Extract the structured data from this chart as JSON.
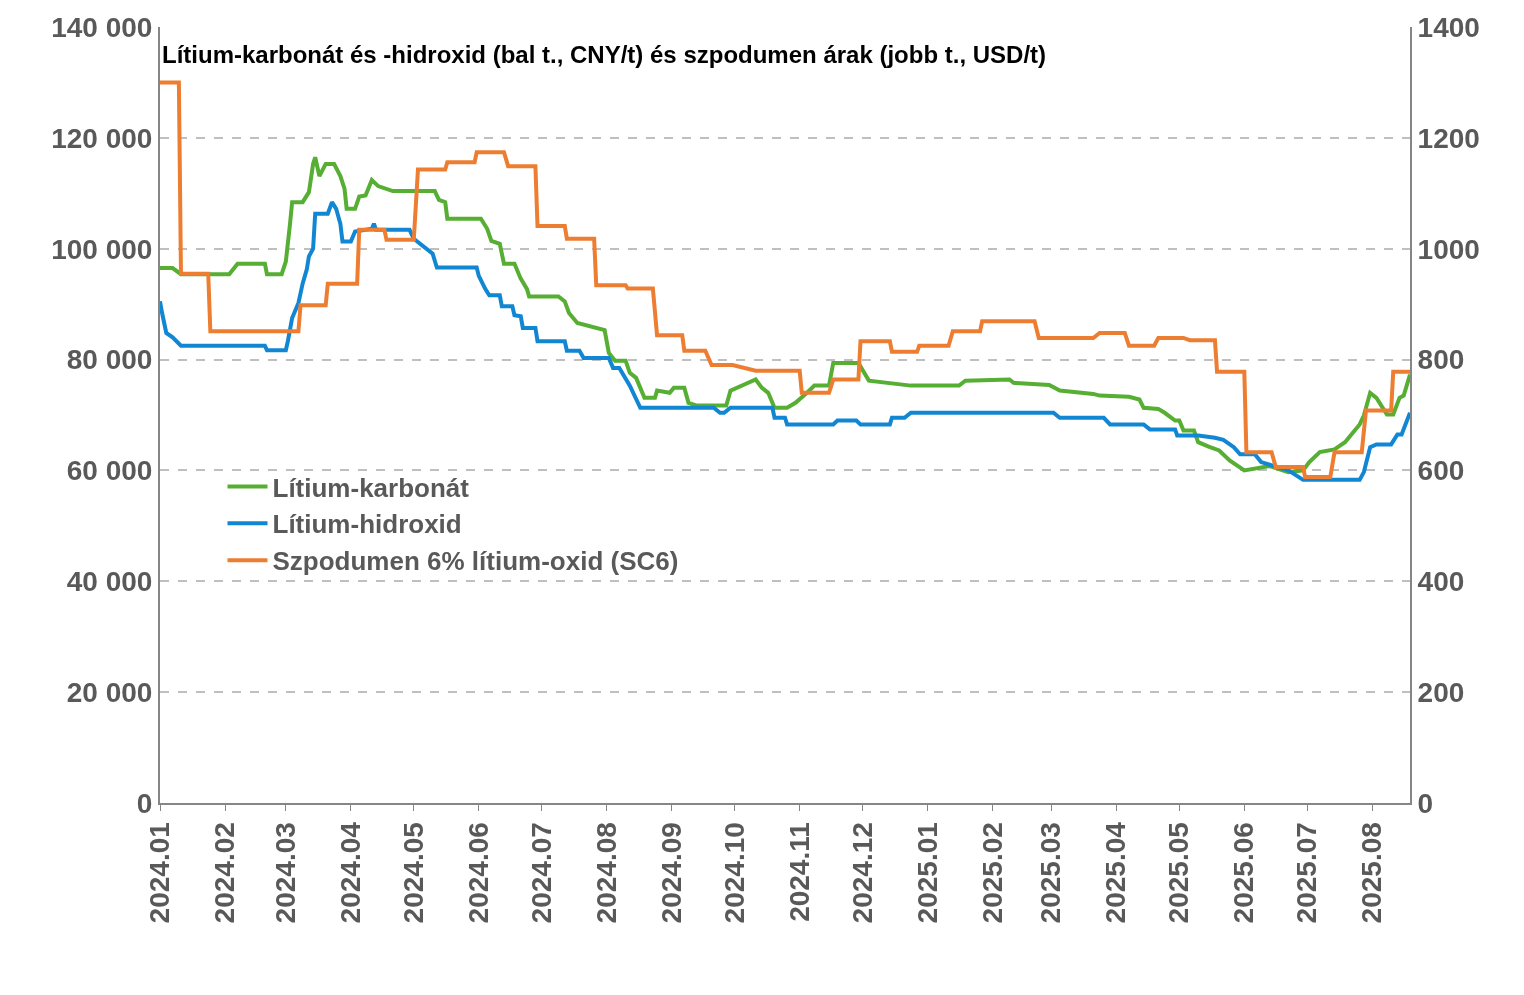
{
  "chart_data": {
    "type": "line",
    "title": "Lítium-karbonát és -hidroxid (bal t., CNY/t) és szpodumen árak (jobb t., USD/t)",
    "xlim": [
      "2024-01-01",
      "2025-08-19"
    ],
    "xticks": [
      {
        "value": "2024-01-01",
        "label": "2024.01"
      },
      {
        "value": "2024-02-01",
        "label": "2024.02"
      },
      {
        "value": "2024-03-01",
        "label": "2024.03"
      },
      {
        "value": "2024-04-01",
        "label": "2024.04"
      },
      {
        "value": "2024-05-01",
        "label": "2024.05"
      },
      {
        "value": "2024-06-01",
        "label": "2024.06"
      },
      {
        "value": "2024-07-01",
        "label": "2024.07"
      },
      {
        "value": "2024-08-01",
        "label": "2024.08"
      },
      {
        "value": "2024-09-01",
        "label": "2024.09"
      },
      {
        "value": "2024-10-01",
        "label": "2024.10"
      },
      {
        "value": "2024-11-01",
        "label": "2024.11"
      },
      {
        "value": "2024-12-01",
        "label": "2024.12"
      },
      {
        "value": "2025-01-01",
        "label": "2025.01"
      },
      {
        "value": "2025-02-01",
        "label": "2025.02"
      },
      {
        "value": "2025-03-01",
        "label": "2025.03"
      },
      {
        "value": "2025-04-01",
        "label": "2025.04"
      },
      {
        "value": "2025-05-01",
        "label": "2025.05"
      },
      {
        "value": "2025-06-01",
        "label": "2025.06"
      },
      {
        "value": "2025-07-01",
        "label": "2025.07"
      },
      {
        "value": "2025-08-01",
        "label": "2025.08"
      }
    ],
    "ylim": [
      0,
      140000
    ],
    "yticks": [
      0,
      {
        "value": 20000,
        "label": "20 000"
      },
      {
        "value": 40000,
        "label": "40 000"
      },
      {
        "value": 60000,
        "label": "60 000"
      },
      {
        "value": 80000,
        "label": "80 000"
      },
      {
        "value": 100000,
        "label": "100 000"
      },
      {
        "value": 120000,
        "label": "120 000"
      },
      {
        "value": 140000,
        "label": "140 000"
      }
    ],
    "y2lim": [
      0,
      1400
    ],
    "y2ticks": [
      0,
      200,
      400,
      600,
      800,
      1000,
      1200,
      1400
    ],
    "grid": "y",
    "legend": "left",
    "marker": "none",
    "line_style": "solid",
    "series": [
      {
        "name": "Lítium-karbonát",
        "color": "#56ae33",
        "x": [
          "2024-01-01",
          "2024-01-07",
          "2024-01-11",
          "2024-02-03",
          "2024-02-07",
          "2024-02-20",
          "2024-02-21",
          "2024-02-28",
          "2024-03-01",
          "2024-03-03",
          "2024-03-04",
          "2024-03-09",
          "2024-03-12",
          "2024-03-14",
          "2024-03-15",
          "2024-03-17",
          "2024-03-20",
          "2024-03-24",
          "2024-03-27",
          "2024-03-29",
          "2024-03-30",
          "2024-04-03",
          "2024-04-05",
          "2024-04-08",
          "2024-04-11",
          "2024-04-14",
          "2024-04-21",
          "2024-05-11",
          "2024-05-13",
          "2024-05-16",
          "2024-05-17",
          "2024-06-02",
          "2024-06-05",
          "2024-06-07",
          "2024-06-11",
          "2024-06-13",
          "2024-06-18",
          "2024-06-21",
          "2024-06-24",
          "2024-06-25",
          "2024-07-09",
          "2024-07-12",
          "2024-07-14",
          "2024-07-18",
          "2024-07-31",
          "2024-08-02",
          "2024-08-05",
          "2024-08-10",
          "2024-08-12",
          "2024-08-15",
          "2024-08-19",
          "2024-08-24",
          "2024-08-25",
          "2024-08-31",
          "2024-09-02",
          "2024-09-07",
          "2024-09-09",
          "2024-09-13",
          "2024-09-27",
          "2024-09-29",
          "2024-10-11",
          "2024-10-14",
          "2024-10-17",
          "2024-10-20",
          "2024-10-26",
          "2024-10-30",
          "2024-11-05",
          "2024-11-08",
          "2024-11-15",
          "2024-11-17",
          "2024-11-29",
          "2024-12-04",
          "2024-12-24",
          "2025-01-16",
          "2025-01-19",
          "2025-02-09",
          "2025-02-11",
          "2025-02-28",
          "2025-03-05",
          "2025-03-21",
          "2025-03-24",
          "2025-04-07",
          "2025-04-12",
          "2025-04-14",
          "2025-04-21",
          "2025-04-24",
          "2025-04-29",
          "2025-05-01",
          "2025-05-03",
          "2025-05-08",
          "2025-05-10",
          "2025-05-15",
          "2025-05-20",
          "2025-05-25",
          "2025-06-01",
          "2025-06-13",
          "2025-06-22",
          "2025-06-29",
          "2025-07-02",
          "2025-07-07",
          "2025-07-14",
          "2025-07-19",
          "2025-07-26",
          "2025-07-28",
          "2025-07-31",
          "2025-08-03",
          "2025-08-08",
          "2025-08-11",
          "2025-08-14",
          "2025-08-16",
          "2025-08-19"
        ],
        "values": [
          96500,
          96500,
          95400,
          95400,
          97300,
          97300,
          95400,
          95400,
          97700,
          104500,
          108400,
          108400,
          110200,
          115300,
          116500,
          113100,
          115300,
          115300,
          113100,
          110800,
          107200,
          107200,
          109400,
          109600,
          112400,
          111300,
          110400,
          110400,
          108800,
          108400,
          105400,
          105400,
          103600,
          101400,
          100900,
          97300,
          97300,
          94600,
          92700,
          91400,
          91400,
          90500,
          88400,
          86600,
          85300,
          81200,
          79800,
          79800,
          77600,
          76700,
          73100,
          73100,
          74400,
          74000,
          74900,
          74900,
          72200,
          71700,
          71700,
          74400,
          76400,
          74900,
          74000,
          71300,
          71300,
          72200,
          74200,
          75300,
          75300,
          79400,
          79400,
          76200,
          75300,
          75300,
          76200,
          76400,
          75800,
          75400,
          74400,
          73800,
          73500,
          73300,
          72800,
          71300,
          71100,
          70400,
          69000,
          69000,
          67200,
          67200,
          65100,
          64300,
          63600,
          61800,
          60000,
          60800,
          59700,
          60000,
          61500,
          63300,
          63800,
          65100,
          68300,
          69900,
          74000,
          73100,
          70100,
          70100,
          73100,
          73500,
          77300
        ]
      },
      {
        "name": "Lítium-hidroxid",
        "color": "#1187d4",
        "x": [
          "2024-01-01",
          "2024-01-02",
          "2024-01-04",
          "2024-01-07",
          "2024-01-11",
          "2024-02-20",
          "2024-02-21",
          "2024-03-01",
          "2024-03-02",
          "2024-03-04",
          "2024-03-07",
          "2024-03-09",
          "2024-03-11",
          "2024-03-12",
          "2024-03-14",
          "2024-03-15",
          "2024-03-21",
          "2024-03-23",
          "2024-03-25",
          "2024-03-27",
          "2024-03-28",
          "2024-04-01",
          "2024-04-03",
          "2024-04-11",
          "2024-04-12",
          "2024-04-13",
          "2024-04-29",
          "2024-05-01",
          "2024-05-10",
          "2024-05-12",
          "2024-05-31",
          "2024-06-01",
          "2024-06-04",
          "2024-06-06",
          "2024-06-11",
          "2024-06-12",
          "2024-06-17",
          "2024-06-18",
          "2024-06-21",
          "2024-06-22",
          "2024-06-28",
          "2024-06-29",
          "2024-07-12",
          "2024-07-13",
          "2024-07-19",
          "2024-07-21",
          "2024-08-02",
          "2024-08-04",
          "2024-08-07",
          "2024-08-12",
          "2024-08-17",
          "2024-09-21",
          "2024-09-24",
          "2024-09-26",
          "2024-09-29",
          "2024-10-19",
          "2024-10-20",
          "2024-10-25",
          "2024-10-26",
          "2024-11-17",
          "2024-11-19",
          "2024-11-28",
          "2024-11-30",
          "2024-12-14",
          "2024-12-15",
          "2024-12-21",
          "2024-12-24",
          "2025-03-02",
          "2025-03-05",
          "2025-03-26",
          "2025-03-29",
          "2025-04-14",
          "2025-04-17",
          "2025-04-29",
          "2025-04-30",
          "2025-05-10",
          "2025-05-18",
          "2025-05-22",
          "2025-05-27",
          "2025-05-30",
          "2025-06-06",
          "2025-06-09",
          "2025-06-22",
          "2025-06-29",
          "2025-07-26",
          "2025-07-28",
          "2025-07-31",
          "2025-08-03",
          "2025-08-10",
          "2025-08-13",
          "2025-08-15",
          "2025-08-19"
        ],
        "values": [
          90500,
          88400,
          84800,
          84000,
          82500,
          82500,
          81700,
          81700,
          83400,
          87500,
          90200,
          93700,
          96300,
          98600,
          100000,
          106300,
          106300,
          108400,
          107200,
          104500,
          101300,
          101300,
          103100,
          103600,
          104500,
          103400,
          103400,
          101800,
          99100,
          96600,
          96600,
          95100,
          92800,
          91600,
          91600,
          89600,
          89600,
          88000,
          87800,
          85700,
          85700,
          83300,
          83300,
          81600,
          81600,
          80300,
          80300,
          78500,
          78500,
          75300,
          71300,
          71300,
          70400,
          70400,
          71300,
          71300,
          69500,
          69500,
          68300,
          68300,
          69000,
          69000,
          68300,
          68300,
          69500,
          69500,
          70400,
          70400,
          69500,
          69500,
          68300,
          68300,
          67400,
          67400,
          66300,
          66300,
          65900,
          65500,
          64200,
          62900,
          62900,
          61500,
          60000,
          58300,
          58300,
          59700,
          64200,
          64700,
          64700,
          66500,
          66500,
          70400
        ]
      },
      {
        "name": "Szpodumen 6% lítium-oxid (SC6)",
        "color": "#ed7d31",
        "axis": "y2",
        "x": [
          "2024-01-01",
          "2024-01-10",
          "2024-01-11",
          "2024-01-24",
          "2024-01-25",
          "2024-03-07",
          "2024-03-08",
          "2024-03-20",
          "2024-03-21",
          "2024-04-04",
          "2024-04-05",
          "2024-04-17",
          "2024-04-18",
          "2024-05-01",
          "2024-05-03",
          "2024-05-16",
          "2024-05-17",
          "2024-05-30",
          "2024-05-31",
          "2024-06-13",
          "2024-06-15",
          "2024-06-28",
          "2024-06-29",
          "2024-07-12",
          "2024-07-13",
          "2024-07-26",
          "2024-07-27",
          "2024-08-10",
          "2024-08-11",
          "2024-08-23",
          "2024-08-25",
          "2024-09-06",
          "2024-09-07",
          "2024-09-17",
          "2024-09-20",
          "2024-09-30",
          "2024-10-11",
          "2024-11-01",
          "2024-11-02",
          "2024-11-15",
          "2024-11-17",
          "2024-11-29",
          "2024-11-30",
          "2024-12-14",
          "2024-12-15",
          "2024-12-27",
          "2024-12-28",
          "2025-01-11",
          "2025-01-13",
          "2025-01-26",
          "2025-01-27",
          "2025-02-21",
          "2025-02-23",
          "2025-03-21",
          "2025-03-24",
          "2025-04-05",
          "2025-04-07",
          "2025-04-19",
          "2025-04-21",
          "2025-05-03",
          "2025-05-06",
          "2025-05-18",
          "2025-05-19",
          "2025-06-01",
          "2025-06-02",
          "2025-06-14",
          "2025-06-16",
          "2025-06-29",
          "2025-06-30",
          "2025-07-12",
          "2025-07-14",
          "2025-07-27",
          "2025-07-29",
          "2025-08-10",
          "2025-08-11",
          "2025-08-19"
        ],
        "values": [
          1300,
          1300,
          955,
          955,
          851,
          851,
          898,
          898,
          937,
          937,
          1034,
          1034,
          1016,
          1016,
          1143,
          1143,
          1156,
          1156,
          1174,
          1174,
          1149,
          1149,
          1041,
          1041,
          1018,
          1018,
          934,
          934,
          928,
          928,
          844,
          844,
          816,
          816,
          790,
          790,
          780,
          780,
          740,
          740,
          764,
          764,
          833,
          833,
          814,
          814,
          825,
          825,
          851,
          851,
          869,
          869,
          839,
          839,
          848,
          848,
          825,
          825,
          839,
          839,
          835,
          835,
          778,
          778,
          633,
          633,
          606,
          606,
          588,
          588,
          633,
          633,
          708,
          708,
          778,
          778
        ]
      }
    ]
  }
}
